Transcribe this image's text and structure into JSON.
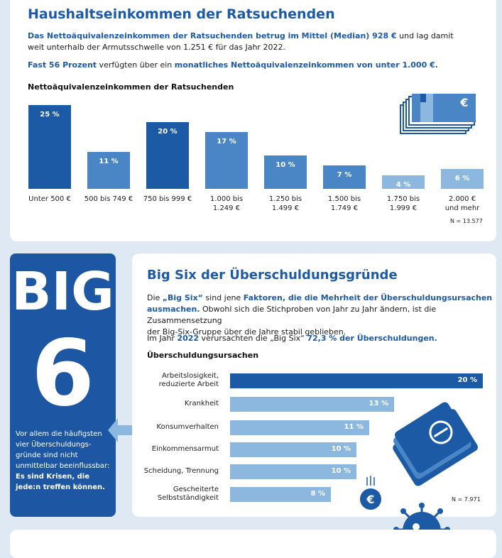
{
  "section1": {
    "title": "Haushaltseinkommen der Ratsuchenden",
    "p1_a": "Das Nettoäquivalenzeinkommen der Ratsuchenden betrug im Mittel (Median) 928 €",
    "p1_b": " und lag damit",
    "p1_c": "weit unterhalb der Armutsschwelle von 1.251 € für das Jahr 2022.",
    "p2_a": "Fast 56 Prozent",
    "p2_b": " verfügten über ein ",
    "p2_c": "monatliches Nettoäquivalenzeinkommen von unter 1.000 €.",
    "chart_title": "Nettoäquivalenzeinkommen der Ratsuchenden",
    "n": "N = 13.577",
    "icon": "euro-banknotes-icon"
  },
  "section2": {
    "big_line1": "BIG",
    "big_line2": "6",
    "side_text": "Vor allem die häufigsten vier Überschuldungs-gründe sind nicht unmittelbar beeinflussbar:",
    "side_bold": "Es sind Krisen, die jede:n treffen können.",
    "title": "Big Six der Überschuldungsgründe",
    "p1_a": "Die ",
    "p1_b": "„Big Six“",
    "p1_c": " sind jene ",
    "p1_d": "Faktoren, die die Mehrheit der Überschuldungsursachen",
    "p1_e": "ausmachen.",
    "p1_f": " Obwohl sich die Stichproben von Jahr zu Jahr ändern, ist die Zusammensetzung",
    "p1_g": "der Big-Six-Gruppe über die Jahre stabil geblieben.",
    "p2_a": "Im Jahr ",
    "p2_b": "2022",
    "p2_c": " verursachten die „Big Six“ ",
    "p2_d": "72,3 % der Überschuldungen.",
    "chart_title": "Überschuldungsursachen",
    "n": "N = 7.971",
    "icons": [
      "wallet-icon",
      "euro-coin-icon",
      "virus-icon"
    ]
  },
  "colors": {
    "dark": "#1d5aa6",
    "mid": "#4a86c5",
    "light": "#8cb8e0",
    "bg": "#dfe9f4"
  },
  "chart_data": [
    {
      "type": "bar",
      "title": "Nettoäquivalenzeinkommen der Ratsuchenden",
      "categories": [
        "Unter 500 €",
        "500 bis 749 €",
        "750 bis 999 €",
        "1.000 bis 1.249 €",
        "1.250 bis 1.499 €",
        "1.500 bis 1.749 €",
        "1.750 bis 1.999 €",
        "2.000 € und mehr"
      ],
      "category_lines": [
        [
          "Unter 500 €"
        ],
        [
          "500 bis 749 €"
        ],
        [
          "750 bis 999 €"
        ],
        [
          "1.000 bis",
          "1.249 €"
        ],
        [
          "1.250 bis",
          "1.499 €"
        ],
        [
          "1.500 bis",
          "1.749 €"
        ],
        [
          "1.750 bis",
          "1.999 €"
        ],
        [
          "2.000 €",
          "und mehr"
        ]
      ],
      "values": [
        25,
        11,
        20,
        17,
        10,
        7,
        4,
        6
      ],
      "labels": [
        "25 %",
        "11 %",
        "20 %",
        "17 %",
        "10 %",
        "7 %",
        "4 %",
        "6 %"
      ],
      "unit": "%",
      "highlight": [
        true,
        false,
        true,
        false,
        false,
        false,
        false,
        false
      ],
      "ylim": [
        0,
        25
      ],
      "grid": false
    },
    {
      "type": "bar",
      "orientation": "horizontal",
      "title": "Überschuldungsursachen",
      "categories": [
        "Arbeitslosigkeit, reduzierte Arbeit",
        "Krankheit",
        "Konsumverhalten",
        "Einkommensarmut",
        "Scheidung, Trennung",
        "Gescheiterte Selbstständigkeit"
      ],
      "category_lines": [
        [
          "Arbeitslosigkeit,",
          "reduzierte Arbeit"
        ],
        [
          "Krankheit"
        ],
        [
          "Konsumverhalten"
        ],
        [
          "Einkommensarmut"
        ],
        [
          "Scheidung, Trennung"
        ],
        [
          "Gescheiterte",
          "Selbstständigkeit"
        ]
      ],
      "values": [
        20,
        13,
        11,
        10,
        10,
        8
      ],
      "labels": [
        "20 %",
        "13 %",
        "11 %",
        "10 %",
        "10 %",
        "8 %"
      ],
      "unit": "%",
      "highlight": [
        true,
        false,
        false,
        false,
        false,
        false
      ],
      "xlim": [
        0,
        20
      ],
      "grid": false
    }
  ]
}
